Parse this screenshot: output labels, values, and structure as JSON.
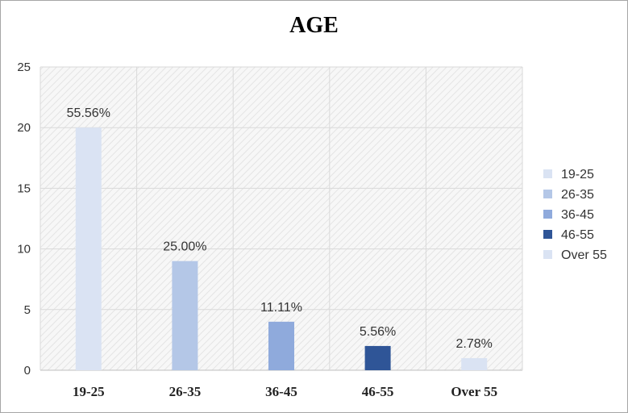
{
  "chart_data": {
    "type": "bar",
    "title": "AGE",
    "categories": [
      "19-25",
      "26-35",
      "36-45",
      "46-55",
      "Over 55"
    ],
    "values": [
      20,
      9,
      4,
      2,
      1
    ],
    "data_labels": [
      "55.56%",
      "25.00%",
      "11.11%",
      "5.56%",
      "2.78%"
    ],
    "colors": [
      "#dae3f3",
      "#b4c7e7",
      "#8faadc",
      "#2f5597",
      "#dae3f3"
    ],
    "yticks": [
      "0",
      "5",
      "10",
      "15",
      "20",
      "25"
    ],
    "ylim": [
      0,
      25
    ],
    "grid": true,
    "legend": {
      "position": "right",
      "entries": [
        "19-25",
        "26-35",
        "36-45",
        "46-55",
        "Over 55"
      ]
    }
  }
}
